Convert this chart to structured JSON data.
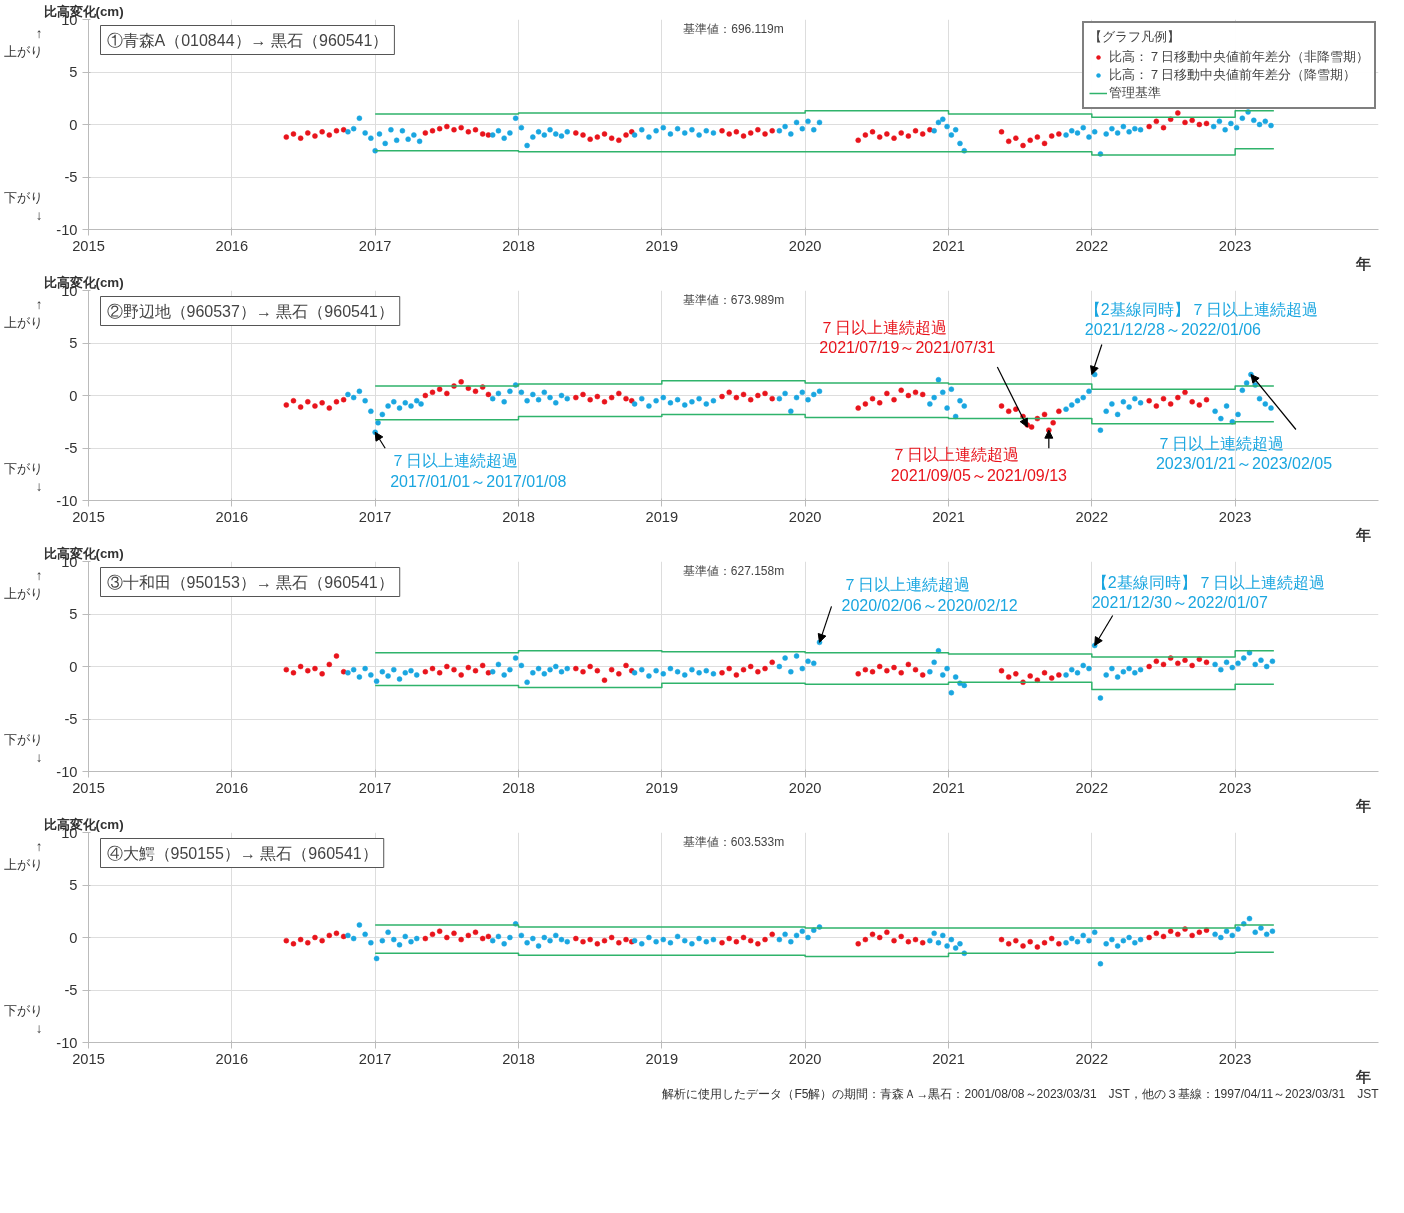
{
  "chart_data": [
    {
      "type": "scatter",
      "title": "①青森A（010844）→ 黒石（960541）",
      "subtitle": "基準値：696.119m",
      "xlabel": "年",
      "ylabel": "比高変化(cm)",
      "legend_title": "【グラフ凡例】",
      "legend": "top right",
      "grid": true,
      "marker": "circle",
      "xlim": [
        2015,
        2024
      ],
      "ylim": [
        -10,
        10
      ],
      "xticks": [
        2015,
        2016,
        2017,
        2018,
        2019,
        2020,
        2021,
        2022,
        2023
      ],
      "yticks": [
        -10,
        -5,
        0,
        5,
        10
      ],
      "annotations": [
        "↑\n上がり",
        "下がり\n↓"
      ],
      "series": [
        {
          "name": "比高：７日移動中央値前年差分（非降雪期）",
          "color": "#e8141c",
          "x": [
            2016.38,
            2016.43,
            2016.48,
            2016.53,
            2016.58,
            2016.63,
            2016.68,
            2016.73,
            2016.78,
            2017.35,
            2017.4,
            2017.45,
            2017.5,
            2017.55,
            2017.6,
            2017.65,
            2017.7,
            2017.75,
            2017.79,
            2018.4,
            2018.45,
            2018.5,
            2018.55,
            2018.6,
            2018.65,
            2018.7,
            2018.75,
            2018.79,
            2019.42,
            2019.47,
            2019.52,
            2019.57,
            2019.62,
            2019.67,
            2019.72,
            2019.77,
            2020.37,
            2020.42,
            2020.47,
            2020.52,
            2020.57,
            2020.62,
            2020.67,
            2020.72,
            2020.77,
            2020.82,
            2020.87,
            2021.37,
            2021.42,
            2021.47,
            2021.52,
            2021.57,
            2021.62,
            2021.67,
            2021.72,
            2021.77,
            2022.4,
            2022.45,
            2022.5,
            2022.55,
            2022.6,
            2022.65,
            2022.7,
            2022.75,
            2022.8
          ],
          "values": [
            -1.2,
            -0.9,
            -1.3,
            -0.8,
            -1.1,
            -0.7,
            -1.0,
            -0.6,
            -0.5,
            -0.8,
            -0.6,
            -0.4,
            -0.2,
            -0.5,
            -0.3,
            -0.7,
            -0.5,
            -0.9,
            -1.0,
            -0.8,
            -1.0,
            -1.4,
            -1.2,
            -0.9,
            -1.3,
            -1.5,
            -1.0,
            -0.7,
            -0.6,
            -0.9,
            -0.7,
            -1.1,
            -0.8,
            -0.5,
            -0.9,
            -0.6,
            -1.5,
            -1.0,
            -0.7,
            -1.2,
            -0.9,
            -1.3,
            -0.8,
            -1.1,
            -0.6,
            -0.9,
            -0.5,
            -0.7,
            -1.6,
            -1.3,
            -2.0,
            -1.5,
            -1.2,
            -1.8,
            -1.1,
            -0.9,
            -0.2,
            0.3,
            -0.3,
            0.5,
            1.1,
            0.2,
            0.4,
            0.0,
            0.1
          ]
        },
        {
          "name": "比高：７日移動中央値前年差分（降雪期）",
          "color": "#1aa6e0",
          "x": [
            2016.81,
            2016.85,
            2016.89,
            2016.93,
            2016.97,
            2017.0,
            2017.03,
            2017.07,
            2017.11,
            2017.15,
            2017.19,
            2017.23,
            2017.27,
            2017.31,
            2017.82,
            2017.86,
            2017.9,
            2017.94,
            2017.98,
            2018.02,
            2018.06,
            2018.1,
            2018.14,
            2018.18,
            2018.22,
            2018.26,
            2018.3,
            2018.34,
            2018.81,
            2018.86,
            2018.91,
            2018.96,
            2019.01,
            2019.06,
            2019.11,
            2019.16,
            2019.21,
            2019.26,
            2019.31,
            2019.36,
            2019.82,
            2019.86,
            2019.9,
            2019.94,
            2019.98,
            2020.02,
            2020.06,
            2020.1,
            2020.9,
            2020.93,
            2020.96,
            2020.99,
            2021.02,
            2021.05,
            2021.08,
            2021.11,
            2021.82,
            2021.86,
            2021.9,
            2021.94,
            2021.98,
            2022.02,
            2022.06,
            2022.1,
            2022.14,
            2022.18,
            2022.22,
            2022.26,
            2022.3,
            2022.34,
            2022.85,
            2022.89,
            2022.93,
            2022.97,
            2023.01,
            2023.05,
            2023.09,
            2023.13,
            2023.17,
            2023.21,
            2023.25
          ],
          "values": [
            -0.7,
            -0.4,
            0.6,
            -0.8,
            -1.3,
            -2.5,
            -0.9,
            -1.8,
            -0.5,
            -1.5,
            -0.6,
            -1.4,
            -1.0,
            -1.6,
            -1.0,
            -0.6,
            -1.3,
            -0.8,
            0.6,
            -0.3,
            -2.0,
            -1.2,
            -0.7,
            -1.0,
            -0.5,
            -0.9,
            -1.1,
            -0.7,
            -1.0,
            -0.5,
            -1.2,
            -0.6,
            -0.3,
            -0.9,
            -0.4,
            -0.8,
            -0.5,
            -1.0,
            -0.6,
            -0.8,
            -0.6,
            -0.2,
            -0.9,
            0.2,
            -0.4,
            0.3,
            -0.5,
            0.2,
            -0.6,
            0.2,
            0.5,
            -0.2,
            -1.0,
            -0.5,
            -1.8,
            -2.5,
            -1.0,
            -0.6,
            -0.8,
            -0.3,
            -1.2,
            -0.7,
            -2.8,
            -0.9,
            -0.4,
            -0.8,
            -0.2,
            -0.7,
            -0.4,
            -0.5,
            -0.2,
            0.3,
            -0.5,
            0.1,
            -0.3,
            0.6,
            1.2,
            0.4,
            0.0,
            0.3,
            -0.1
          ]
        },
        {
          "name": "管理基準",
          "type": "step",
          "marker": "none",
          "color": "#2fb36b",
          "x": [
            2017,
            2018,
            2019,
            2020,
            2021,
            2022,
            2023,
            2023.27
          ],
          "values": [
            1.0,
            1.1,
            1.1,
            1.3,
            1.0,
            0.7,
            1.3,
            1.3
          ]
        },
        {
          "type": "step",
          "marker": "none",
          "color": "#2fb36b",
          "x": [
            2017,
            2018,
            2019,
            2020,
            2021,
            2022,
            2023,
            2023.27
          ],
          "values": [
            -2.5,
            -2.6,
            -2.6,
            -2.6,
            -2.6,
            -2.9,
            -2.3,
            -2.3
          ]
        }
      ]
    },
    {
      "type": "scatter",
      "title": "②野辺地（960537）→ 黒石（960541）",
      "subtitle": "基準値：673.989m",
      "xlabel": "年",
      "ylabel": "比高変化(cm)",
      "grid": true,
      "marker": "circle",
      "xlim": [
        2015,
        2024
      ],
      "ylim": [
        -10,
        10
      ],
      "xticks": [
        2015,
        2016,
        2017,
        2018,
        2019,
        2020,
        2021,
        2022,
        2023
      ],
      "yticks": [
        -10,
        -5,
        0,
        5,
        10
      ],
      "annotations": [
        "↑\n上がり",
        "下がり\n↓",
        {
          "text": "７日以上連続超過\n2017/01/01～2017/01/08",
          "x": 2017.0,
          "y": -3.5
        },
        {
          "text": "７日以上連続超過\n2021/07/19～2021/07/31",
          "x": 2021.55,
          "y": -3.0
        },
        {
          "text": "７日以上連続超過\n2021/09/05～2021/09/13",
          "x": 2021.7,
          "y": -3.3
        },
        {
          "text": "【2基線同時】７日以上連続超過\n2021/12/28～2022/01/06",
          "x": 2022.0,
          "y": 2.0
        },
        {
          "text": "７日以上連続超過\n2023/01/21～2023/02/05",
          "x": 2023.11,
          "y": 2.0
        }
      ],
      "series": [
        {
          "color": "#e8141c",
          "x": [
            2016.38,
            2016.43,
            2016.48,
            2016.53,
            2016.58,
            2016.63,
            2016.68,
            2016.73,
            2016.78,
            2017.35,
            2017.4,
            2017.45,
            2017.5,
            2017.55,
            2017.6,
            2017.65,
            2017.7,
            2017.75,
            2017.79,
            2018.4,
            2018.45,
            2018.5,
            2018.55,
            2018.6,
            2018.65,
            2018.7,
            2018.75,
            2018.79,
            2019.42,
            2019.47,
            2019.52,
            2019.57,
            2019.62,
            2019.67,
            2019.72,
            2019.77,
            2020.37,
            2020.42,
            2020.47,
            2020.52,
            2020.57,
            2020.62,
            2020.67,
            2020.72,
            2020.77,
            2020.82,
            2021.37,
            2021.42,
            2021.47,
            2021.52,
            2021.55,
            2021.58,
            2021.62,
            2021.67,
            2021.7,
            2021.73,
            2021.77,
            2022.4,
            2022.45,
            2022.5,
            2022.55,
            2022.6,
            2022.65,
            2022.7,
            2022.75,
            2022.8
          ],
          "values": [
            -0.9,
            -0.5,
            -1.1,
            -0.6,
            -1.0,
            -0.7,
            -1.2,
            -0.6,
            -0.4,
            0.0,
            0.3,
            0.6,
            0.2,
            0.9,
            1.3,
            0.7,
            0.4,
            0.8,
            0.1,
            -0.2,
            0.1,
            -0.4,
            -0.1,
            -0.6,
            -0.2,
            0.2,
            -0.3,
            -0.5,
            -0.1,
            0.3,
            -0.2,
            0.1,
            -0.4,
            0.0,
            0.2,
            -0.3,
            -1.2,
            -0.8,
            -0.3,
            -0.7,
            0.2,
            -0.4,
            0.5,
            0.0,
            0.3,
            0.1,
            -1.0,
            -1.5,
            -1.3,
            -2.0,
            -2.8,
            -3.0,
            -2.2,
            -1.8,
            -3.3,
            -2.6,
            -1.5,
            -0.5,
            -1.0,
            -0.3,
            -0.8,
            -0.2,
            0.3,
            -0.6,
            -0.9,
            -0.4
          ]
        },
        {
          "color": "#1aa6e0",
          "x": [
            2016.81,
            2016.85,
            2016.89,
            2016.93,
            2016.97,
            2017.0,
            2017.02,
            2017.05,
            2017.09,
            2017.13,
            2017.17,
            2017.21,
            2017.25,
            2017.29,
            2017.32,
            2017.82,
            2017.86,
            2017.9,
            2017.94,
            2017.98,
            2018.02,
            2018.06,
            2018.1,
            2018.14,
            2018.18,
            2018.22,
            2018.26,
            2018.3,
            2018.34,
            2018.81,
            2018.86,
            2018.91,
            2018.96,
            2019.01,
            2019.06,
            2019.11,
            2019.16,
            2019.21,
            2019.26,
            2019.31,
            2019.36,
            2019.82,
            2019.86,
            2019.9,
            2019.94,
            2019.98,
            2020.02,
            2020.06,
            2020.1,
            2020.87,
            2020.9,
            2020.93,
            2020.96,
            2020.99,
            2021.02,
            2021.05,
            2021.08,
            2021.11,
            2021.82,
            2021.86,
            2021.9,
            2021.94,
            2021.98,
            2022.02,
            2022.06,
            2022.1,
            2022.14,
            2022.18,
            2022.22,
            2022.26,
            2022.3,
            2022.34,
            2022.86,
            2022.9,
            2022.94,
            2022.98,
            2023.02,
            2023.05,
            2023.08,
            2023.11,
            2023.14,
            2023.17,
            2023.21,
            2023.25
          ],
          "values": [
            0.1,
            -0.2,
            0.4,
            -0.5,
            -1.5,
            -3.5,
            -2.6,
            -1.8,
            -1.0,
            -0.6,
            -1.2,
            -0.7,
            -1.0,
            -0.5,
            -0.8,
            -0.3,
            0.2,
            -0.6,
            0.4,
            1.0,
            0.3,
            -0.5,
            0.1,
            -0.4,
            0.3,
            -0.2,
            -0.7,
            0.0,
            -0.3,
            -0.8,
            -0.3,
            -1.0,
            -0.5,
            -0.2,
            -0.7,
            -0.4,
            -0.9,
            -0.6,
            -0.3,
            -0.8,
            -0.5,
            -0.3,
            0.2,
            -1.5,
            -0.2,
            0.3,
            -0.4,
            0.1,
            0.4,
            -0.8,
            -0.2,
            1.5,
            0.3,
            -1.2,
            0.6,
            -2.0,
            -0.5,
            -1.0,
            -1.3,
            -0.9,
            -0.5,
            -0.2,
            0.4,
            2.0,
            -3.3,
            -1.5,
            -0.8,
            -1.8,
            -0.6,
            -1.1,
            -0.3,
            -0.7,
            -1.5,
            -2.2,
            -1.0,
            -2.5,
            -1.8,
            0.5,
            1.2,
            2.0,
            1.0,
            -0.3,
            -0.8,
            -1.2
          ]
        },
        {
          "type": "step",
          "marker": "none",
          "color": "#2fb36b",
          "x": [
            2017,
            2018,
            2019,
            2020,
            2021,
            2022,
            2023,
            2023.27
          ],
          "values": [
            0.9,
            1.1,
            1.4,
            1.2,
            1.1,
            0.6,
            0.9,
            0.9
          ]
        },
        {
          "type": "step",
          "marker": "none",
          "color": "#2fb36b",
          "x": [
            2017,
            2018,
            2019,
            2020,
            2021,
            2022,
            2023,
            2023.27
          ],
          "values": [
            -2.3,
            -2.0,
            -1.8,
            -2.1,
            -2.2,
            -2.7,
            -2.5,
            -2.5
          ]
        }
      ]
    },
    {
      "type": "scatter",
      "title": "③十和田（950153）→ 黒石（960541）",
      "subtitle": "基準値：627.158m",
      "xlabel": "年",
      "ylabel": "比高変化(cm)",
      "grid": true,
      "marker": "circle",
      "xlim": [
        2015,
        2024
      ],
      "ylim": [
        -10,
        10
      ],
      "xticks": [
        2015,
        2016,
        2017,
        2018,
        2019,
        2020,
        2021,
        2022,
        2023
      ],
      "yticks": [
        -10,
        -5,
        0,
        5,
        10
      ],
      "annotations": [
        "↑\n上がり",
        "下がり\n↓",
        {
          "text": "７日以上連続超過\n2020/02/06～2020/02/12",
          "x": 2020.1,
          "y": 2.3
        },
        {
          "text": "【2基線同時】７日以上連続超過\n2021/12/30～2022/01/07",
          "x": 2022.02,
          "y": 2.0
        }
      ],
      "series": [
        {
          "color": "#e8141c",
          "x": [
            2016.38,
            2016.43,
            2016.48,
            2016.53,
            2016.58,
            2016.63,
            2016.68,
            2016.73,
            2016.78,
            2017.35,
            2017.4,
            2017.45,
            2017.5,
            2017.55,
            2017.6,
            2017.65,
            2017.7,
            2017.75,
            2017.79,
            2018.4,
            2018.45,
            2018.5,
            2018.55,
            2018.6,
            2018.65,
            2018.7,
            2018.75,
            2018.79,
            2019.42,
            2019.47,
            2019.52,
            2019.57,
            2019.62,
            2019.67,
            2019.72,
            2019.77,
            2020.37,
            2020.42,
            2020.47,
            2020.52,
            2020.57,
            2020.62,
            2020.67,
            2020.72,
            2020.77,
            2020.82,
            2021.37,
            2021.42,
            2021.47,
            2021.52,
            2021.57,
            2021.62,
            2021.67,
            2021.72,
            2021.77,
            2022.4,
            2022.45,
            2022.5,
            2022.55,
            2022.6,
            2022.65,
            2022.7,
            2022.75,
            2022.8
          ],
          "values": [
            -0.3,
            -0.6,
            0.0,
            -0.4,
            -0.2,
            -0.7,
            0.2,
            1.0,
            -0.5,
            -0.5,
            -0.2,
            -0.6,
            0.0,
            -0.3,
            -0.8,
            -0.1,
            -0.4,
            0.1,
            -0.6,
            -0.2,
            -0.5,
            0.0,
            -0.4,
            -1.3,
            -0.3,
            -0.7,
            0.1,
            -0.4,
            -0.6,
            -0.2,
            -0.8,
            -0.3,
            0.0,
            -0.5,
            -0.2,
            0.4,
            -0.7,
            -0.3,
            -0.5,
            0.0,
            -0.4,
            -0.1,
            -0.6,
            0.2,
            -0.3,
            -0.8,
            -0.4,
            -1.0,
            -0.7,
            -1.5,
            -0.9,
            -1.3,
            -0.6,
            -1.1,
            -0.8,
            0.0,
            0.5,
            0.2,
            0.8,
            0.3,
            0.6,
            0.1,
            0.7,
            0.4
          ]
        },
        {
          "color": "#1aa6e0",
          "x": [
            2016.81,
            2016.85,
            2016.89,
            2016.93,
            2016.97,
            2017.01,
            2017.05,
            2017.09,
            2017.13,
            2017.17,
            2017.21,
            2017.25,
            2017.29,
            2017.82,
            2017.86,
            2017.9,
            2017.94,
            2017.98,
            2018.02,
            2018.06,
            2018.1,
            2018.14,
            2018.18,
            2018.22,
            2018.26,
            2018.3,
            2018.34,
            2018.81,
            2018.86,
            2018.91,
            2018.96,
            2019.01,
            2019.06,
            2019.11,
            2019.16,
            2019.21,
            2019.26,
            2019.31,
            2019.36,
            2019.82,
            2019.86,
            2019.9,
            2019.94,
            2019.98,
            2020.02,
            2020.06,
            2020.1,
            2020.87,
            2020.9,
            2020.93,
            2020.96,
            2020.99,
            2021.02,
            2021.05,
            2021.08,
            2021.11,
            2021.82,
            2021.86,
            2021.9,
            2021.94,
            2021.98,
            2022.02,
            2022.06,
            2022.1,
            2022.14,
            2022.18,
            2022.22,
            2022.26,
            2022.3,
            2022.34,
            2022.86,
            2022.9,
            2022.94,
            2022.98,
            2023.02,
            2023.06,
            2023.1,
            2023.14,
            2023.18,
            2023.22,
            2023.26
          ],
          "values": [
            -0.6,
            -0.3,
            -1.0,
            -0.2,
            -0.8,
            -1.4,
            -0.5,
            -0.9,
            -0.3,
            -1.2,
            -0.6,
            -0.4,
            -0.8,
            -0.5,
            0.2,
            -0.8,
            -0.3,
            0.8,
            0.1,
            -1.5,
            -0.6,
            -0.2,
            -0.7,
            -0.3,
            0.0,
            -0.5,
            -0.2,
            -0.6,
            -0.3,
            -0.9,
            -0.4,
            -0.7,
            -0.2,
            -0.5,
            -0.8,
            -0.3,
            -0.6,
            -0.4,
            -0.7,
            0.0,
            0.8,
            -0.5,
            1.0,
            -0.2,
            0.5,
            0.3,
            2.3,
            -0.5,
            0.4,
            1.5,
            -0.8,
            -0.2,
            -2.5,
            -1.0,
            -1.6,
            -1.8,
            -0.8,
            -0.3,
            -0.6,
            0.1,
            -0.2,
            2.0,
            -3.0,
            -0.8,
            -0.2,
            -1.0,
            -0.5,
            -0.2,
            -0.6,
            -0.3,
            0.2,
            -0.3,
            0.4,
            -0.1,
            0.3,
            0.8,
            1.3,
            0.2,
            0.6,
            0.0,
            0.5
          ]
        },
        {
          "type": "step",
          "marker": "none",
          "color": "#2fb36b",
          "x": [
            2017,
            2018,
            2019,
            2020,
            2021,
            2022,
            2023,
            2023.27
          ],
          "values": [
            1.3,
            1.5,
            1.4,
            1.3,
            1.2,
            0.9,
            1.5,
            1.5
          ]
        },
        {
          "type": "step",
          "marker": "none",
          "color": "#2fb36b",
          "x": [
            2017,
            2018,
            2019,
            2020,
            2021,
            2022,
            2023,
            2023.27
          ],
          "values": [
            -1.8,
            -2.0,
            -1.6,
            -1.7,
            -1.5,
            -2.2,
            -1.7,
            -1.7
          ]
        }
      ]
    },
    {
      "type": "scatter",
      "title": "④大鰐（950155）→ 黒石（960541）",
      "subtitle": "基準値：603.533m",
      "xlabel": "年",
      "ylabel": "比高変化(cm)",
      "grid": true,
      "marker": "circle",
      "xlim": [
        2015,
        2024
      ],
      "ylim": [
        -10,
        10
      ],
      "xticks": [
        2015,
        2016,
        2017,
        2018,
        2019,
        2020,
        2021,
        2022,
        2023
      ],
      "yticks": [
        -10,
        -5,
        0,
        5,
        10
      ],
      "annotations": [
        "↑\n上がり",
        "下がり\n↓",
        "解析に使用したデータ（F5解）の期間：青森Ａ→黒石：2001/08/08～2023/03/31　JST，他の３基線：1997/04/11～2023/03/31　JST"
      ],
      "series": [
        {
          "color": "#e8141c",
          "x": [
            2016.38,
            2016.43,
            2016.48,
            2016.53,
            2016.58,
            2016.63,
            2016.68,
            2016.73,
            2016.78,
            2017.35,
            2017.4,
            2017.45,
            2017.5,
            2017.55,
            2017.6,
            2017.65,
            2017.7,
            2017.75,
            2017.79,
            2018.4,
            2018.45,
            2018.5,
            2018.55,
            2018.6,
            2018.65,
            2018.7,
            2018.75,
            2018.79,
            2019.42,
            2019.47,
            2019.52,
            2019.57,
            2019.62,
            2019.67,
            2019.72,
            2019.77,
            2020.37,
            2020.42,
            2020.47,
            2020.52,
            2020.57,
            2020.62,
            2020.67,
            2020.72,
            2020.77,
            2020.82,
            2021.37,
            2021.42,
            2021.47,
            2021.52,
            2021.57,
            2021.62,
            2021.67,
            2021.72,
            2021.77,
            2022.4,
            2022.45,
            2022.5,
            2022.55,
            2022.6,
            2022.65,
            2022.7,
            2022.75,
            2022.8
          ],
          "values": [
            -0.3,
            -0.6,
            -0.2,
            -0.5,
            0.0,
            -0.3,
            0.2,
            0.4,
            0.1,
            -0.1,
            0.3,
            0.6,
            0.0,
            0.4,
            -0.2,
            0.2,
            0.5,
            -0.1,
            0.1,
            -0.1,
            -0.4,
            -0.2,
            -0.6,
            -0.3,
            0.0,
            -0.5,
            -0.2,
            -0.4,
            -0.5,
            -0.1,
            -0.4,
            0.0,
            -0.3,
            -0.6,
            -0.2,
            0.3,
            -0.6,
            -0.2,
            0.3,
            0.0,
            0.5,
            -0.3,
            0.1,
            -0.4,
            -0.2,
            -0.5,
            -0.2,
            -0.6,
            -0.3,
            -0.8,
            -0.4,
            -0.9,
            -0.5,
            -0.1,
            -0.6,
            0.0,
            0.4,
            0.1,
            0.6,
            0.3,
            0.8,
            0.2,
            0.5,
            0.7
          ]
        },
        {
          "color": "#1aa6e0",
          "x": [
            2016.81,
            2016.85,
            2016.89,
            2016.93,
            2016.97,
            2017.01,
            2017.05,
            2017.09,
            2017.13,
            2017.17,
            2017.21,
            2017.25,
            2017.29,
            2017.82,
            2017.86,
            2017.9,
            2017.94,
            2017.98,
            2018.02,
            2018.06,
            2018.1,
            2018.14,
            2018.18,
            2018.22,
            2018.26,
            2018.3,
            2018.34,
            2018.81,
            2018.86,
            2018.91,
            2018.96,
            2019.01,
            2019.06,
            2019.11,
            2019.16,
            2019.21,
            2019.26,
            2019.31,
            2019.36,
            2019.82,
            2019.86,
            2019.9,
            2019.94,
            2019.98,
            2020.02,
            2020.06,
            2020.1,
            2020.87,
            2020.9,
            2020.93,
            2020.96,
            2020.99,
            2021.02,
            2021.05,
            2021.08,
            2021.11,
            2021.82,
            2021.86,
            2021.9,
            2021.94,
            2021.98,
            2022.02,
            2022.06,
            2022.1,
            2022.14,
            2022.18,
            2022.22,
            2022.26,
            2022.3,
            2022.34,
            2022.86,
            2022.9,
            2022.94,
            2022.98,
            2023.02,
            2023.06,
            2023.1,
            2023.14,
            2023.18,
            2023.22,
            2023.26
          ],
          "values": [
            0.2,
            -0.1,
            1.2,
            0.3,
            -0.5,
            -2.0,
            -0.3,
            0.5,
            -0.2,
            -0.7,
            0.1,
            -0.4,
            -0.1,
            -0.3,
            0.1,
            -0.6,
            0.0,
            1.3,
            0.2,
            -0.5,
            -0.1,
            -0.8,
            0.0,
            -0.3,
            0.2,
            -0.2,
            -0.4,
            -0.3,
            -0.6,
            0.0,
            -0.4,
            -0.2,
            -0.5,
            0.1,
            -0.3,
            -0.6,
            -0.1,
            -0.4,
            -0.2,
            -0.2,
            0.3,
            -0.4,
            0.2,
            0.6,
            0.0,
            0.7,
            1.0,
            -0.3,
            0.4,
            -0.5,
            0.2,
            -0.8,
            -0.2,
            -1.0,
            -0.6,
            -1.5,
            -0.5,
            -0.1,
            -0.4,
            0.2,
            -0.3,
            0.5,
            -2.5,
            -0.6,
            -0.2,
            -0.8,
            -0.3,
            0.0,
            -0.5,
            -0.2,
            0.3,
            0.0,
            0.6,
            0.2,
            0.8,
            1.3,
            1.8,
            0.5,
            0.9,
            0.3,
            0.6
          ]
        },
        {
          "type": "step",
          "marker": "none",
          "color": "#2fb36b",
          "x": [
            2017,
            2018,
            2019,
            2020,
            2021,
            2022,
            2023,
            2023.27
          ],
          "values": [
            1.2,
            1.0,
            1.0,
            0.9,
            0.9,
            0.9,
            1.2,
            1.2
          ]
        },
        {
          "type": "step",
          "marker": "none",
          "color": "#2fb36b",
          "x": [
            2017,
            2018,
            2019,
            2020,
            2021,
            2022,
            2023,
            2023.27
          ],
          "values": [
            -1.5,
            -1.7,
            -1.7,
            -1.8,
            -1.5,
            -1.5,
            -1.4,
            -1.4
          ]
        }
      ]
    }
  ]
}
